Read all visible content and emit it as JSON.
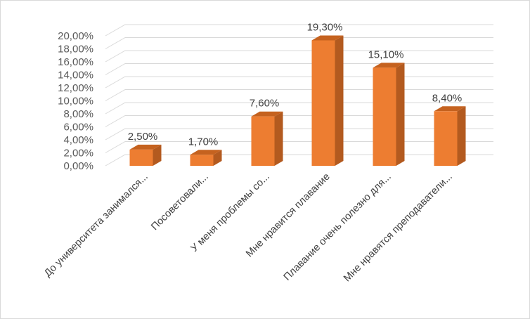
{
  "chart_data": {
    "type": "bar",
    "style": "3d-column",
    "categories": [
      "До университета занимался...",
      "Посоветовали...",
      "У меня проблемы со...",
      "Мне нравится плавание",
      "Плавание очень полезно для...",
      "Мне нравятся преподаватели..."
    ],
    "values": [
      2.5,
      1.7,
      7.6,
      19.3,
      15.1,
      8.4
    ],
    "data_labels": [
      "2,50%",
      "1,70%",
      "7,60%",
      "19,30%",
      "15,10%",
      "8,40%"
    ],
    "y_ticks": [
      "0,00%",
      "2,00%",
      "4,00%",
      "6,00%",
      "8,00%",
      "10,00%",
      "12,00%",
      "14,00%",
      "16,00%",
      "18,00%",
      "20,00%"
    ],
    "ylim": [
      0,
      20
    ],
    "grid": true,
    "colors": {
      "front": "#ED7D31",
      "side": "#B35A1F",
      "top": "#C5621F",
      "grid": "#d9d9d9"
    }
  }
}
